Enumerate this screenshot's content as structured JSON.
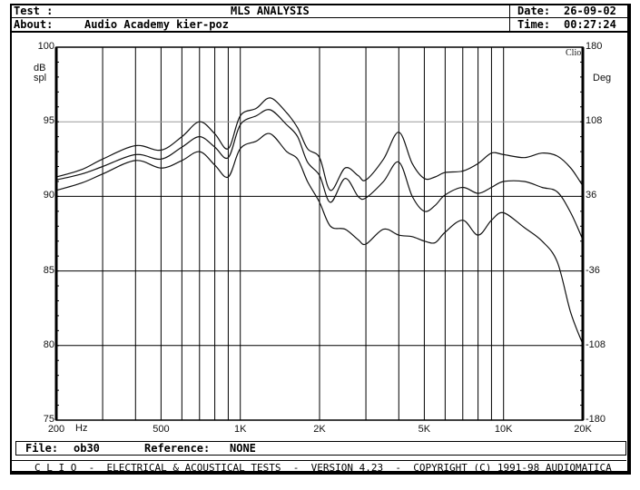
{
  "header": {
    "test_label": "Test :",
    "test_value": "MLS ANALYSIS",
    "about_label": "About:",
    "about_value": "Audio Academy kier-poz",
    "date_label": "Date:",
    "date_value": "26-09-02",
    "time_label": "Time:",
    "time_value": "00:27:24"
  },
  "plot": {
    "left_unit_line1": "dB",
    "left_unit_line2": "spl",
    "right_unit": "Deg",
    "clip_label": "Clio",
    "x_unit": "Hz",
    "left_ticks": [
      "100",
      "95",
      "90",
      "85",
      "80",
      "75"
    ],
    "right_ticks": [
      "180",
      "108",
      "36",
      "-36",
      "-108",
      "-180"
    ],
    "x_ticks": [
      "200",
      "500",
      "1K",
      "2K",
      "5K",
      "10K",
      "20K"
    ]
  },
  "footer": {
    "file_label": "File:",
    "file_value": "ob30",
    "reference_label": "Reference:",
    "reference_value": "NONE",
    "bottom_bar": "C L I O  -  ELECTRICAL & ACOUSTICAL TESTS  -  VERSION 4.23  -  COPYRIGHT (C) 1991-98 AUDIOMATICA"
  },
  "colors": {
    "background": "#ffffff",
    "ink": "#000000",
    "grid_minor": "#000000",
    "grid_95": "#9a9a9a"
  },
  "chart_data": {
    "type": "line",
    "title": "MLS ANALYSIS",
    "xlabel": "Hz",
    "ylabel": "dB spl",
    "y2label": "Deg",
    "xscale": "log",
    "xlim": [
      200,
      20000
    ],
    "ylim": [
      75,
      100
    ],
    "y2lim": [
      -180,
      180
    ],
    "x_tick_labels": [
      "200",
      "500",
      "1K",
      "2K",
      "5K",
      "10K",
      "20K"
    ],
    "y_tick_labels": [
      "100",
      "95",
      "90",
      "85",
      "80",
      "75"
    ],
    "y2_tick_labels": [
      "180",
      "108",
      "36",
      "-36",
      "-108",
      "-180"
    ],
    "grid": true,
    "legend": null,
    "x": [
      200,
      250,
      300,
      400,
      500,
      600,
      700,
      800,
      900,
      1000,
      1150,
      1300,
      1500,
      1650,
      1800,
      2000,
      2200,
      2500,
      2800,
      3000,
      3500,
      4000,
      4500,
      5000,
      5500,
      6000,
      7000,
      8000,
      9000,
      10000,
      12000,
      14000,
      16000,
      18000,
      20000
    ],
    "series": [
      {
        "name": "upper",
        "values": [
          91.3,
          91.8,
          92.5,
          93.4,
          93.1,
          94.0,
          95.0,
          94.2,
          93.2,
          95.4,
          95.9,
          96.6,
          95.6,
          94.6,
          93.2,
          92.6,
          90.4,
          91.9,
          91.4,
          91.1,
          92.5,
          94.3,
          92.2,
          91.2,
          91.3,
          91.6,
          91.7,
          92.2,
          92.9,
          92.8,
          92.6,
          92.9,
          92.7,
          91.9,
          90.7
        ]
      },
      {
        "name": "middle",
        "values": [
          91.1,
          91.5,
          92.0,
          92.8,
          92.5,
          93.3,
          94.0,
          93.3,
          92.6,
          94.8,
          95.4,
          95.8,
          94.8,
          94.0,
          92.3,
          91.4,
          89.6,
          91.2,
          90.0,
          89.9,
          91.0,
          92.3,
          90.0,
          89.0,
          89.4,
          90.1,
          90.6,
          90.2,
          90.6,
          91.0,
          91.0,
          90.6,
          90.3,
          88.9,
          87.1
        ]
      },
      {
        "name": "lower",
        "values": [
          90.4,
          90.9,
          91.5,
          92.4,
          91.9,
          92.4,
          93.0,
          92.1,
          91.3,
          93.2,
          93.7,
          94.2,
          93.0,
          92.5,
          91.0,
          89.6,
          88.0,
          87.8,
          87.1,
          86.8,
          87.8,
          87.4,
          87.3,
          87.0,
          86.9,
          87.6,
          88.4,
          87.4,
          88.4,
          88.9,
          87.9,
          87.0,
          85.6,
          82.2,
          80.1
        ]
      }
    ]
  }
}
